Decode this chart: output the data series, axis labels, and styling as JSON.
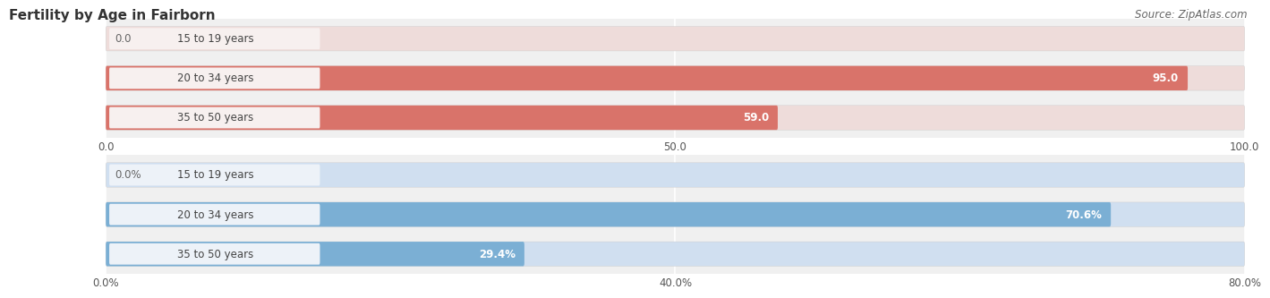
{
  "title": "Fertility by Age in Fairborn",
  "source": "Source: ZipAtlas.com",
  "top_chart": {
    "categories": [
      "15 to 19 years",
      "20 to 34 years",
      "35 to 50 years"
    ],
    "values": [
      0.0,
      95.0,
      59.0
    ],
    "value_labels": [
      "0.0",
      "95.0",
      "59.0"
    ],
    "xlim": [
      0,
      100
    ],
    "xticks": [
      0.0,
      50.0,
      100.0
    ],
    "xtick_labels": [
      "0.0",
      "50.0",
      "100.0"
    ],
    "bar_color": "#d9736a",
    "bar_bg_color": "#eedcda",
    "pill_bg_color": "#f7f0ef",
    "label_inside_color": "#ffffff",
    "label_outside_color": "#666666"
  },
  "bottom_chart": {
    "categories": [
      "15 to 19 years",
      "20 to 34 years",
      "35 to 50 years"
    ],
    "values": [
      0.0,
      70.6,
      29.4
    ],
    "value_labels": [
      "0.0%",
      "70.6%",
      "29.4%"
    ],
    "xlim": [
      0,
      80
    ],
    "xticks": [
      0.0,
      40.0,
      80.0
    ],
    "xtick_labels": [
      "0.0%",
      "40.0%",
      "80.0%"
    ],
    "bar_color": "#7bafd4",
    "bar_bg_color": "#d0dff0",
    "pill_bg_color": "#edf2f8",
    "label_inside_color": "#ffffff",
    "label_outside_color": "#666666"
  },
  "figsize": [
    14.06,
    3.31
  ],
  "dpi": 100,
  "bg_color": "#ffffff",
  "plot_bg_color": "#f0f0f0",
  "grid_color": "#ffffff",
  "title_fontsize": 11,
  "label_fontsize": 8.5,
  "tick_fontsize": 8.5,
  "source_fontsize": 8.5,
  "bar_height": 0.62,
  "text_fontsize": 8.5
}
